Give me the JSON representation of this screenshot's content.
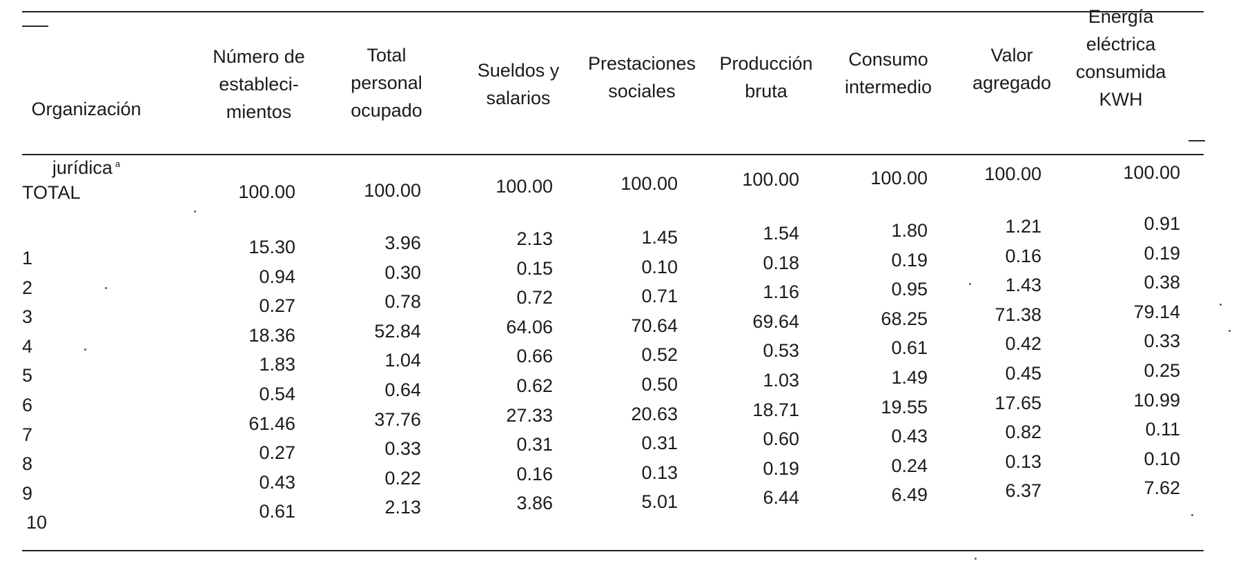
{
  "table": {
    "header": {
      "col0_line1": "Organización",
      "col0_line2": "jurídica",
      "col0_mark": "a",
      "columns": [
        "Número de\nestableci-\nmientos",
        "Total\npersonal\nocupado",
        "Sueldos y\nsalarios",
        "Prestaciones\nsociales",
        "Producción\nbruta",
        "Consumo\nintermedio",
        "Valor\nagregado",
        "Energía\neléctrica\nconsumida\nKWH"
      ]
    },
    "total_row": {
      "label": "TOTAL",
      "values": [
        "100.00",
        "100.00",
        "100.00",
        "100.00",
        "100.00",
        "100.00",
        "100.00",
        "100.00"
      ]
    },
    "rows": [
      {
        "label": "1",
        "values": [
          "15.30",
          "3.96",
          "2.13",
          "1.45",
          "1.54",
          "1.80",
          "1.21",
          "0.91"
        ]
      },
      {
        "label": "2",
        "values": [
          "0.94",
          "0.30",
          "0.15",
          "0.10",
          "0.18",
          "0.19",
          "0.16",
          "0.19"
        ]
      },
      {
        "label": "3",
        "values": [
          "0.27",
          "0.78",
          "0.72",
          "0.71",
          "1.16",
          "0.95",
          "1.43",
          "0.38"
        ]
      },
      {
        "label": "4",
        "values": [
          "18.36",
          "52.84",
          "64.06",
          "70.64",
          "69.64",
          "68.25",
          "71.38",
          "79.14"
        ]
      },
      {
        "label": "5",
        "values": [
          "1.83",
          "1.04",
          "0.66",
          "0.52",
          "0.53",
          "0.61",
          "0.42",
          "0.33"
        ]
      },
      {
        "label": "6",
        "values": [
          "0.54",
          "0.64",
          "0.62",
          "0.50",
          "1.03",
          "1.49",
          "0.45",
          "0.25"
        ]
      },
      {
        "label": "7",
        "values": [
          "61.46",
          "37.76",
          "27.33",
          "20.63",
          "18.71",
          "19.55",
          "17.65",
          "10.99"
        ]
      },
      {
        "label": "8",
        "values": [
          "0.27",
          "0.33",
          "0.31",
          "0.31",
          "0.60",
          "0.43",
          "0.82",
          "0.11"
        ]
      },
      {
        "label": "9",
        "values": [
          "0.43",
          "0.22",
          "0.16",
          "0.13",
          "0.19",
          "0.24",
          "0.13",
          "0.10"
        ]
      },
      {
        "label": "10",
        "values": [
          "0.61",
          "2.13",
          "3.86",
          "5.01",
          "6.44",
          "6.49",
          "6.37",
          "7.62"
        ]
      }
    ]
  }
}
